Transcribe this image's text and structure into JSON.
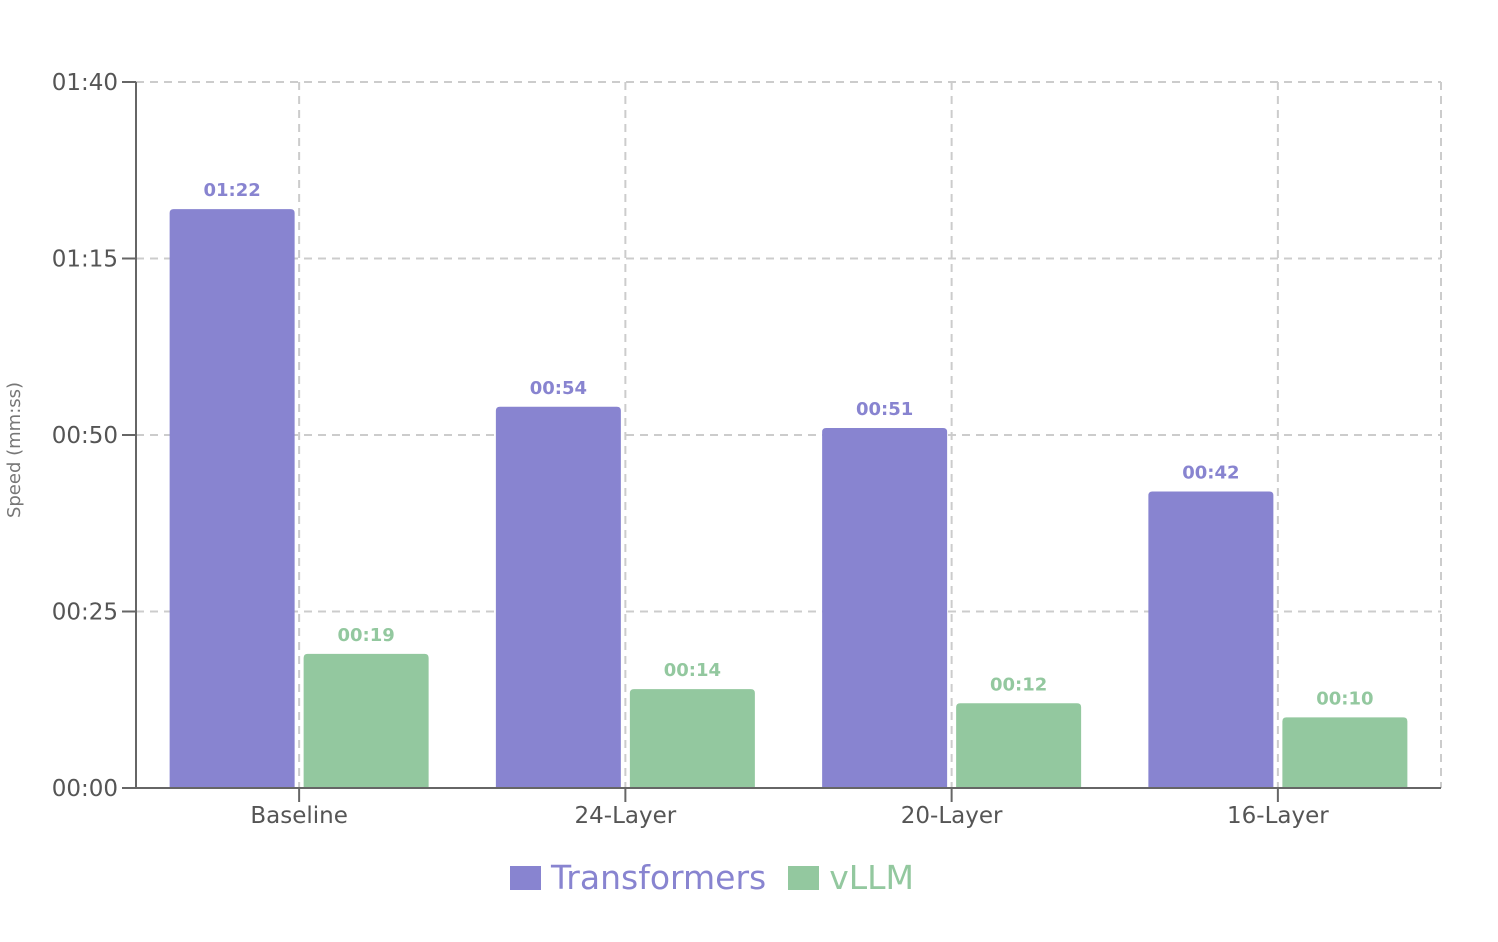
{
  "chart_data": {
    "type": "bar",
    "title": "",
    "xlabel": "",
    "ylabel": "Speed (mm:ss)",
    "ylim": [
      0,
      100
    ],
    "y_unit": "seconds",
    "y_ticks": [
      0,
      25,
      50,
      75,
      100
    ],
    "y_tick_labels": [
      "00:00",
      "00:25",
      "00:50",
      "01:15",
      "01:40"
    ],
    "categories": [
      "Baseline",
      "24-Layer",
      "20-Layer",
      "16-Layer"
    ],
    "series": [
      {
        "name": "Transformers",
        "color": "#8884d0",
        "values": [
          82,
          54,
          51,
          42
        ],
        "labels": [
          "01:22",
          "00:54",
          "00:51",
          "00:42"
        ]
      },
      {
        "name": "vLLM",
        "color": "#93c89f",
        "values": [
          19,
          14,
          12,
          10
        ],
        "labels": [
          "00:19",
          "00:14",
          "00:12",
          "00:10"
        ]
      }
    ],
    "grid": true,
    "legend_position": "bottom"
  },
  "colors": {
    "axis": "#666666",
    "grid": "#cccccc",
    "tick_text": "#555555"
  }
}
